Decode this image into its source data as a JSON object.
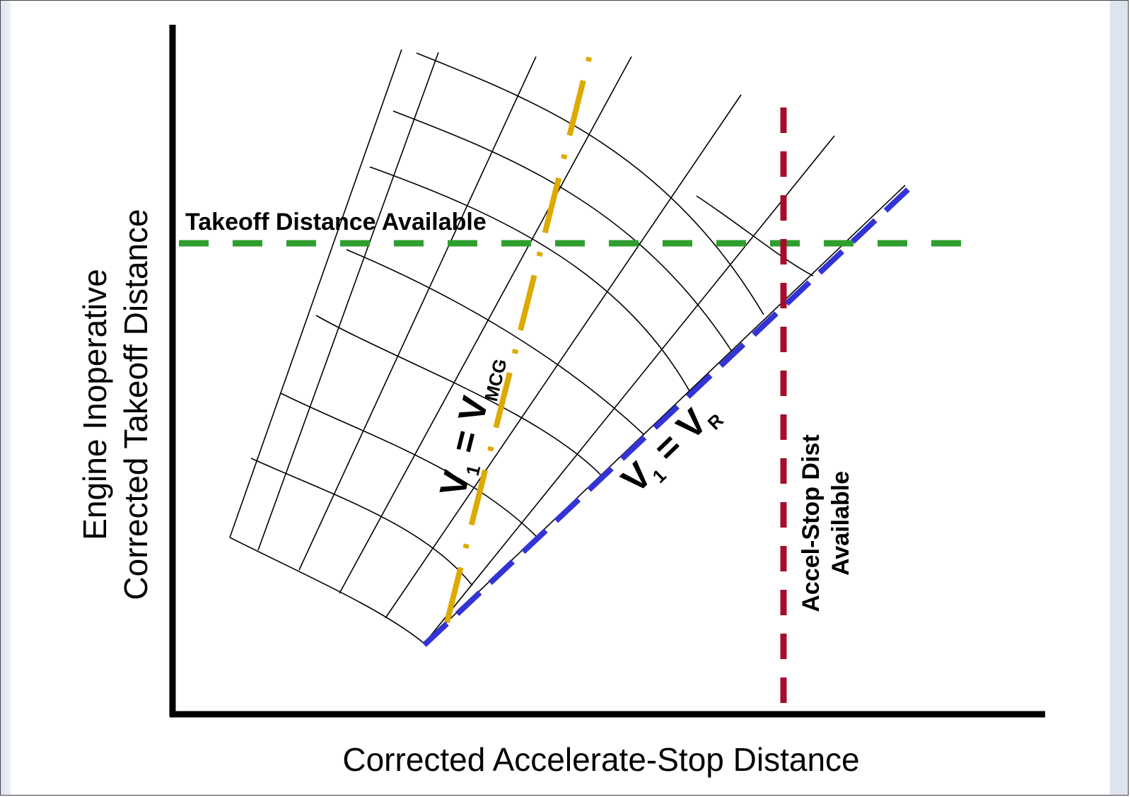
{
  "diagram": {
    "x_axis_title": "Corrected Accelerate-Stop Distance",
    "y_axis_title_line1": "Engine Inoperative",
    "y_axis_title_line2": "Corrected Takeoff Distance",
    "takeoff_label": "Takeoff Distance Available",
    "accel_stop_line1": "Accel-Stop Dist",
    "accel_stop_line2": "Available",
    "vmcg": {
      "v": "V",
      "one": "1",
      "eq": " = V",
      "sub": "MCG"
    },
    "vr": {
      "v": "V",
      "one": "1",
      "eq": " = V",
      "sub": "R"
    }
  },
  "colors": {
    "takeoff_line": "#2e9e2e",
    "accel_stop_line": "#a50e2a",
    "vmcg_line": "#dcaa00",
    "vr_line": "#3333d6",
    "grid": "#000000"
  }
}
